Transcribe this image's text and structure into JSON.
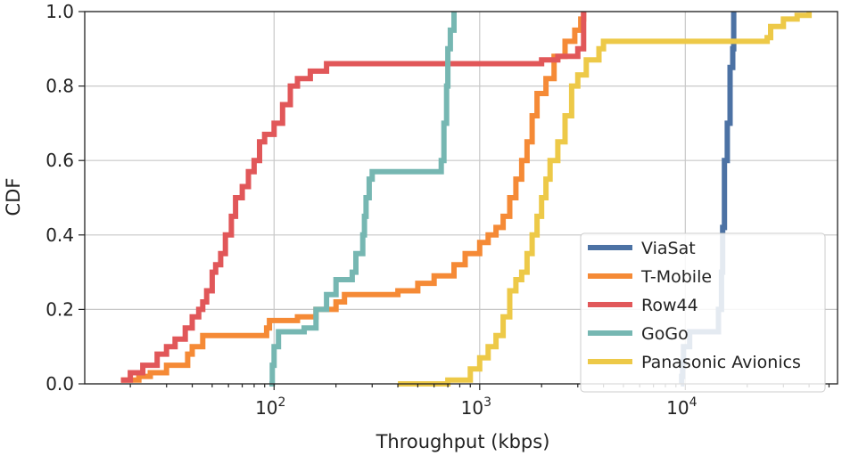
{
  "chart_data": {
    "type": "line",
    "title": "",
    "xlabel": "Throughput (kbps)",
    "ylabel": "CDF",
    "xscale": "log",
    "xlim": [
      12,
      55000
    ],
    "ylim": [
      0,
      1
    ],
    "grid": true,
    "legend_position": "bottom-right",
    "x_ticks": [
      {
        "value": 100,
        "base": "10",
        "exp": "2"
      },
      {
        "value": 1000,
        "base": "10",
        "exp": "3"
      },
      {
        "value": 10000,
        "base": "10",
        "exp": "4"
      }
    ],
    "y_ticks": [
      {
        "value": 0.0,
        "label": "0.0"
      },
      {
        "value": 0.2,
        "label": "0.2"
      },
      {
        "value": 0.4,
        "label": "0.4"
      },
      {
        "value": 0.6,
        "label": "0.6"
      },
      {
        "value": 0.8,
        "label": "0.8"
      },
      {
        "value": 1.0,
        "label": "1.0"
      }
    ],
    "series": [
      {
        "name": "ViaSat",
        "color": "#4c72a4",
        "points": [
          [
            9500,
            0.0
          ],
          [
            9600,
            0.02
          ],
          [
            9700,
            0.06
          ],
          [
            9800,
            0.1
          ],
          [
            10500,
            0.14
          ],
          [
            14000,
            0.14
          ],
          [
            14500,
            0.2
          ],
          [
            15000,
            0.3
          ],
          [
            15200,
            0.42
          ],
          [
            15500,
            0.6
          ],
          [
            16000,
            0.7
          ],
          [
            16500,
            0.85
          ],
          [
            17000,
            0.9
          ],
          [
            17200,
            1.0
          ]
        ]
      },
      {
        "name": "T-Mobile",
        "color": "#f58a36",
        "points": [
          [
            18,
            0.01
          ],
          [
            22,
            0.02
          ],
          [
            25,
            0.03
          ],
          [
            30,
            0.05
          ],
          [
            38,
            0.08
          ],
          [
            40,
            0.1
          ],
          [
            45,
            0.13
          ],
          [
            90,
            0.13
          ],
          [
            92,
            0.15
          ],
          [
            95,
            0.17
          ],
          [
            130,
            0.18
          ],
          [
            160,
            0.2
          ],
          [
            200,
            0.22
          ],
          [
            220,
            0.24
          ],
          [
            400,
            0.25
          ],
          [
            500,
            0.27
          ],
          [
            600,
            0.29
          ],
          [
            750,
            0.32
          ],
          [
            850,
            0.35
          ],
          [
            1000,
            0.38
          ],
          [
            1100,
            0.4
          ],
          [
            1200,
            0.42
          ],
          [
            1300,
            0.45
          ],
          [
            1400,
            0.5
          ],
          [
            1500,
            0.55
          ],
          [
            1600,
            0.6
          ],
          [
            1700,
            0.65
          ],
          [
            1800,
            0.72
          ],
          [
            1900,
            0.78
          ],
          [
            2100,
            0.82
          ],
          [
            2300,
            0.88
          ],
          [
            2600,
            0.92
          ],
          [
            2900,
            0.95
          ],
          [
            3100,
            0.98
          ],
          [
            3200,
            1.0
          ]
        ]
      },
      {
        "name": "Row44",
        "color": "#e15759",
        "points": [
          [
            18,
            0.01
          ],
          [
            20,
            0.03
          ],
          [
            23,
            0.05
          ],
          [
            27,
            0.08
          ],
          [
            30,
            0.1
          ],
          [
            33,
            0.12
          ],
          [
            37,
            0.15
          ],
          [
            40,
            0.18
          ],
          [
            43,
            0.2
          ],
          [
            45,
            0.22
          ],
          [
            47,
            0.25
          ],
          [
            50,
            0.3
          ],
          [
            52,
            0.32
          ],
          [
            55,
            0.35
          ],
          [
            58,
            0.4
          ],
          [
            62,
            0.45
          ],
          [
            65,
            0.5
          ],
          [
            70,
            0.53
          ],
          [
            75,
            0.57
          ],
          [
            80,
            0.6
          ],
          [
            85,
            0.65
          ],
          [
            90,
            0.67
          ],
          [
            100,
            0.7
          ],
          [
            110,
            0.75
          ],
          [
            120,
            0.8
          ],
          [
            130,
            0.82
          ],
          [
            150,
            0.84
          ],
          [
            180,
            0.86
          ],
          [
            2000,
            0.87
          ],
          [
            2400,
            0.88
          ],
          [
            3000,
            0.9
          ],
          [
            3200,
            1.0
          ]
        ]
      },
      {
        "name": "GoGo",
        "color": "#76b7b2",
        "points": [
          [
            95,
            0.0
          ],
          [
            98,
            0.05
          ],
          [
            100,
            0.1
          ],
          [
            105,
            0.14
          ],
          [
            140,
            0.15
          ],
          [
            160,
            0.2
          ],
          [
            180,
            0.24
          ],
          [
            200,
            0.28
          ],
          [
            240,
            0.3
          ],
          [
            250,
            0.35
          ],
          [
            270,
            0.4
          ],
          [
            275,
            0.45
          ],
          [
            280,
            0.5
          ],
          [
            290,
            0.55
          ],
          [
            300,
            0.57
          ],
          [
            600,
            0.57
          ],
          [
            650,
            0.6
          ],
          [
            670,
            0.7
          ],
          [
            690,
            0.8
          ],
          [
            700,
            0.9
          ],
          [
            720,
            0.95
          ],
          [
            750,
            1.0
          ]
        ]
      },
      {
        "name": "Panasonic Avionics",
        "color": "#edc948",
        "points": [
          [
            400,
            0.0
          ],
          [
            700,
            0.01
          ],
          [
            900,
            0.04
          ],
          [
            1000,
            0.07
          ],
          [
            1100,
            0.1
          ],
          [
            1200,
            0.13
          ],
          [
            1300,
            0.18
          ],
          [
            1400,
            0.25
          ],
          [
            1500,
            0.28
          ],
          [
            1600,
            0.3
          ],
          [
            1700,
            0.35
          ],
          [
            1800,
            0.4
          ],
          [
            1900,
            0.45
          ],
          [
            2000,
            0.5
          ],
          [
            2100,
            0.55
          ],
          [
            2200,
            0.6
          ],
          [
            2400,
            0.65
          ],
          [
            2600,
            0.72
          ],
          [
            2800,
            0.8
          ],
          [
            3000,
            0.83
          ],
          [
            3300,
            0.87
          ],
          [
            3800,
            0.9
          ],
          [
            4000,
            0.92
          ],
          [
            25000,
            0.93
          ],
          [
            26000,
            0.96
          ],
          [
            30000,
            0.98
          ],
          [
            35000,
            0.99
          ],
          [
            40000,
            1.0
          ]
        ]
      }
    ]
  }
}
